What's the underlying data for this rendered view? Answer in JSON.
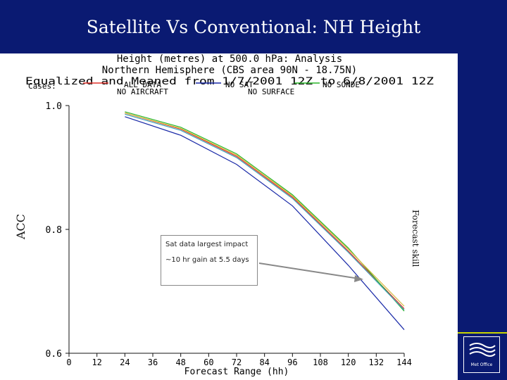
{
  "slide": {
    "title": "Satellite Vs Conventional: NH Height",
    "side_label": "Forecast skill",
    "logo_text": "Met Office"
  },
  "annotation": {
    "text": "Sat data largest impact ~10 hr gain at 5.5 days"
  },
  "chart_data": {
    "type": "line",
    "title": "Height (metres) at 500.0 hPa: Analysis",
    "subtitle1": "Northern Hemisphere (CBS area 90N - 18.75N)",
    "subtitle2": "Equalized and Meaned from 1/7/2001 12Z to 6/8/2001 12Z",
    "cases_label": "Cases:",
    "xlabel": "Forecast Range (hh)",
    "ylabel": "ACC",
    "xlim": [
      0,
      144
    ],
    "ylim": [
      0.6,
      1.0
    ],
    "x_ticks": [
      0,
      12,
      24,
      36,
      48,
      60,
      72,
      84,
      96,
      108,
      120,
      132,
      144
    ],
    "y_ticks": [
      "0.6",
      "0.8",
      "1.0"
    ],
    "y_tick_values": [
      0.6,
      0.8,
      1.0
    ],
    "x": [
      24,
      48,
      72,
      96,
      120,
      144
    ],
    "series": [
      {
        "name": "ALL DATA",
        "color": "#e0302a",
        "values": [
          0.988,
          0.962,
          0.918,
          0.852,
          0.765,
          0.672
        ]
      },
      {
        "name": "NO SAT",
        "color": "#1a2aa8",
        "values": [
          0.982,
          0.952,
          0.905,
          0.838,
          0.742,
          0.638
        ]
      },
      {
        "name": "NO SONDE",
        "color": "#2ab52a",
        "values": [
          0.99,
          0.965,
          0.922,
          0.856,
          0.77,
          0.668
        ]
      },
      {
        "name": "NO AIRCRAFT",
        "color": "#3aa0b8",
        "values": [
          0.986,
          0.96,
          0.916,
          0.85,
          0.763,
          0.67
        ]
      },
      {
        "name": "NO SURFACE",
        "color": "#d6b83a",
        "values": [
          0.988,
          0.963,
          0.92,
          0.854,
          0.768,
          0.676
        ]
      }
    ]
  }
}
